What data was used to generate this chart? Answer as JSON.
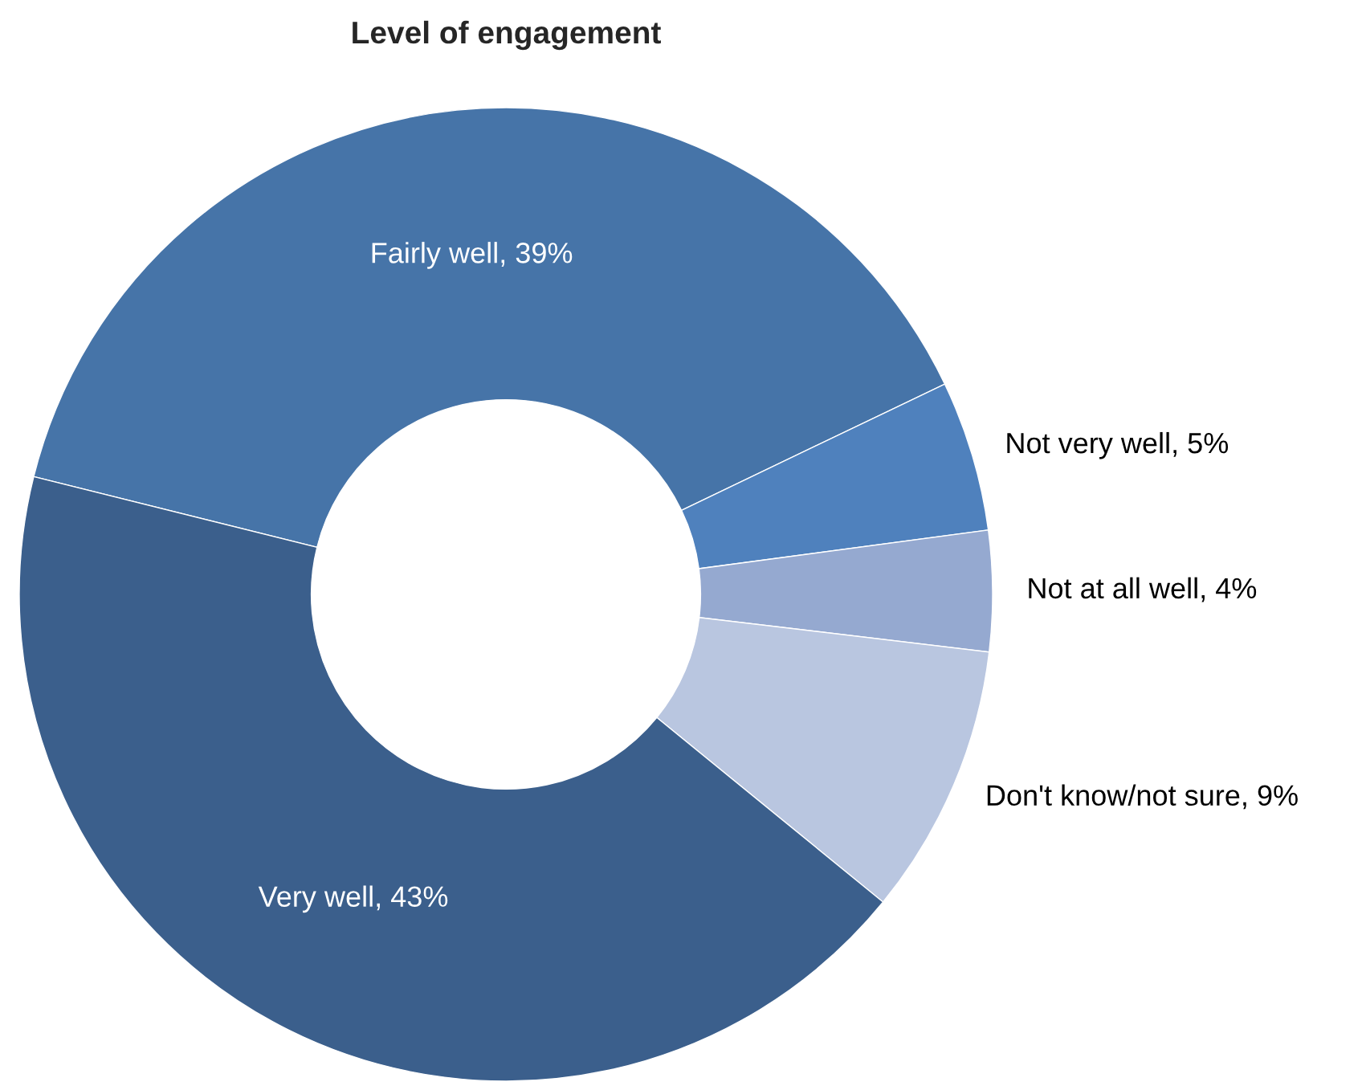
{
  "chart_data": {
    "type": "donut",
    "title": "Level of engagement",
    "categories": [
      "Fairly well",
      "Not very well",
      "Not at all well",
      "Don't know/not sure",
      "Very well"
    ],
    "values": [
      39,
      5,
      4,
      9,
      43
    ],
    "value_labels": [
      "39%",
      "5%",
      "4%",
      "9%",
      "43%"
    ],
    "colors": [
      "#4674a8",
      "#4f81bd",
      "#95a9d0",
      "#b9c6e0",
      "#3b5f8c"
    ],
    "legend": false
  }
}
